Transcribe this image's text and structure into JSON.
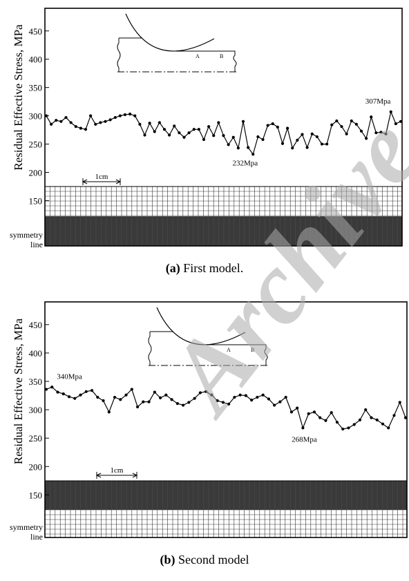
{
  "watermark": "Archive",
  "chart_data": [
    {
      "type": "line",
      "caption_bold": "(a)",
      "caption_text": " First model.",
      "ylabel": "Residual Effective Stress, MPa",
      "yticks": [
        150,
        200,
        250,
        300,
        350,
        400,
        450
      ],
      "ylim": [
        70,
        490
      ],
      "scale_label": "1cm",
      "symmetry_label": [
        "symmetry",
        "line"
      ],
      "inset_labels": [
        "A",
        "B"
      ],
      "annotations": [
        {
          "text": "232Mpa",
          "x": 39,
          "y": 232
        },
        {
          "text": "307Mpa",
          "x": 68.5,
          "y": 307
        }
      ],
      "series": [
        {
          "values": [
            300,
            285,
            292,
            290,
            297,
            288,
            281,
            278,
            276,
            300,
            285,
            288,
            290,
            293,
            297,
            300,
            302,
            303,
            300,
            285,
            266,
            287,
            272,
            288,
            276,
            266,
            282,
            270,
            262,
            270,
            276,
            276,
            258,
            281,
            265,
            288,
            265,
            249,
            262,
            243,
            290,
            244,
            232,
            263,
            258,
            283,
            286,
            280,
            251,
            278,
            243,
            257,
            267,
            244,
            268,
            263,
            250,
            250,
            284,
            291,
            281,
            268,
            291,
            285,
            273,
            260,
            298,
            270,
            271,
            268,
            307,
            286,
            290
          ]
        }
      ]
    },
    {
      "type": "line",
      "caption_bold": "(b)",
      "caption_text": " Second model",
      "ylabel": "Residual Effective Stress, MPa",
      "yticks": [
        150,
        200,
        250,
        300,
        350,
        400,
        450
      ],
      "ylim": [
        75,
        490
      ],
      "scale_label": "1cm",
      "symmetry_label": [
        "symmetry",
        "line"
      ],
      "inset_labels": [
        "A",
        "B"
      ],
      "annotations": [
        {
          "text": "340Mpa",
          "x": 1,
          "y": 340
        },
        {
          "text": "268Mpa",
          "x": 45,
          "y": 268
        }
      ],
      "series": [
        {
          "values": [
            336,
            340,
            331,
            328,
            323,
            320,
            326,
            332,
            334,
            322,
            316,
            296,
            322,
            318,
            326,
            336,
            305,
            314,
            314,
            331,
            321,
            326,
            318,
            311,
            308,
            313,
            320,
            330,
            332,
            326,
            316,
            313,
            310,
            322,
            326,
            325,
            317,
            322,
            326,
            319,
            308,
            314,
            322,
            296,
            303,
            268,
            293,
            296,
            286,
            281,
            295,
            278,
            266,
            268,
            274,
            282,
            300,
            286,
            282,
            275,
            268,
            290,
            313,
            286
          ]
        }
      ]
    }
  ]
}
